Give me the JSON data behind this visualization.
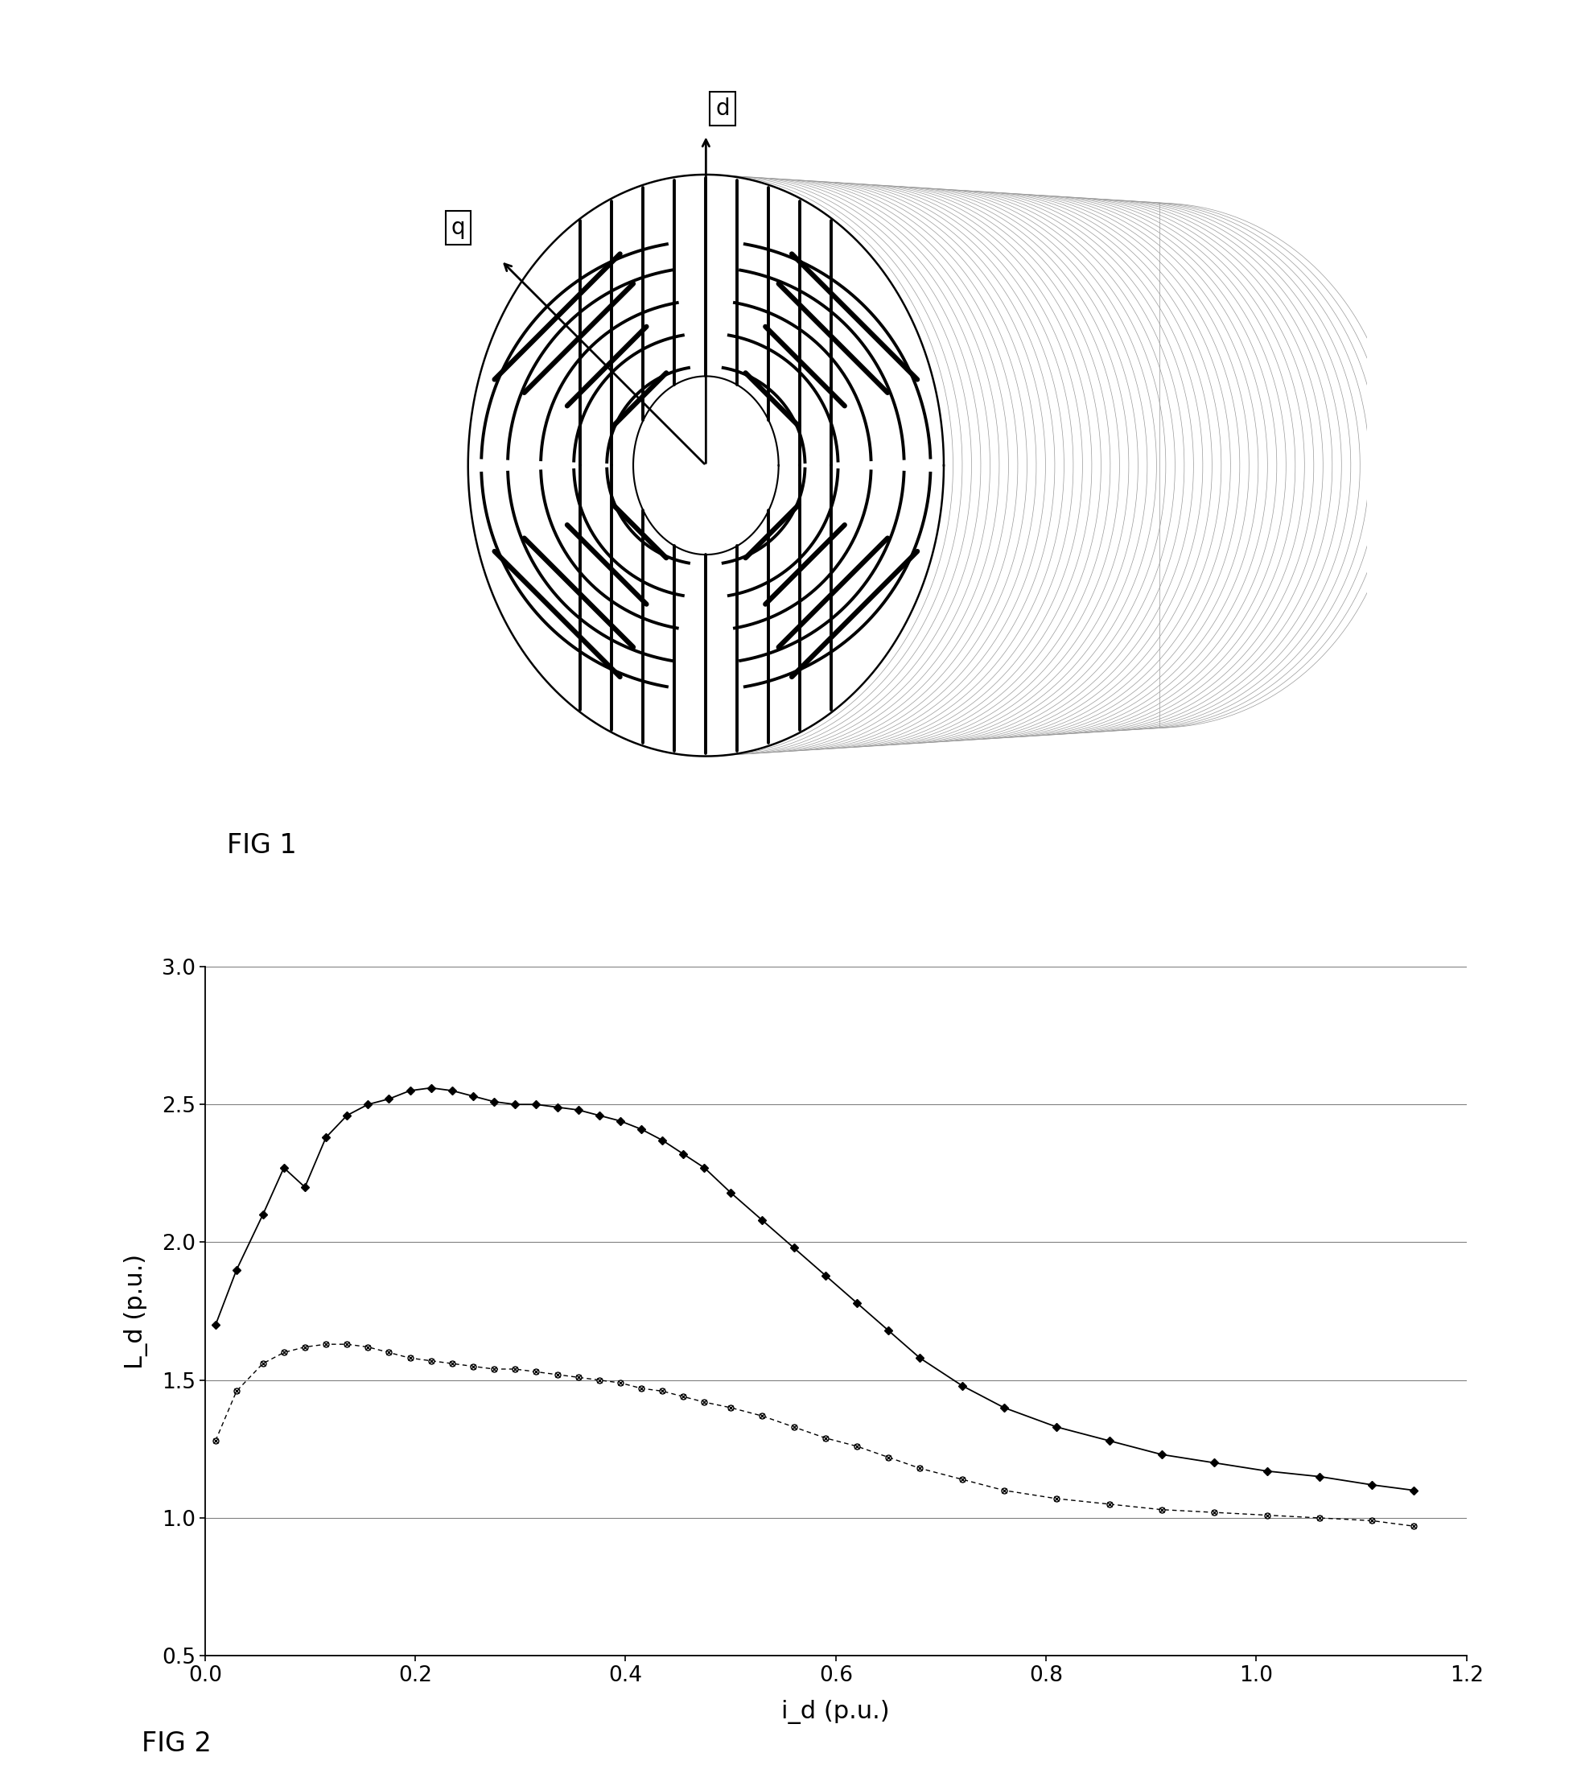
{
  "fig1_label": "FIG 1",
  "fig2_label": "FIG 2",
  "xlabel": "i_d (p.u.)",
  "ylabel": "L_d (p.u.)",
  "xlim": [
    0,
    1.2
  ],
  "ylim": [
    0.5,
    3.0
  ],
  "xticks": [
    0,
    0.2,
    0.4,
    0.6,
    0.8,
    1.0,
    1.2
  ],
  "yticks": [
    0.5,
    1.0,
    1.5,
    2.0,
    2.5,
    3.0
  ],
  "bg_color": "#ffffff",
  "series1_x": [
    0.01,
    0.03,
    0.055,
    0.075,
    0.095,
    0.115,
    0.135,
    0.155,
    0.175,
    0.195,
    0.215,
    0.235,
    0.255,
    0.275,
    0.295,
    0.315,
    0.335,
    0.355,
    0.375,
    0.395,
    0.415,
    0.435,
    0.455,
    0.475,
    0.5,
    0.53,
    0.56,
    0.59,
    0.62,
    0.65,
    0.68,
    0.72,
    0.76,
    0.81,
    0.86,
    0.91,
    0.96,
    1.01,
    1.06,
    1.11,
    1.15
  ],
  "series1_y": [
    1.7,
    1.9,
    2.1,
    2.27,
    2.2,
    2.38,
    2.46,
    2.5,
    2.52,
    2.55,
    2.56,
    2.55,
    2.53,
    2.51,
    2.5,
    2.5,
    2.49,
    2.48,
    2.46,
    2.44,
    2.41,
    2.37,
    2.32,
    2.27,
    2.18,
    2.08,
    1.98,
    1.88,
    1.78,
    1.68,
    1.58,
    1.48,
    1.4,
    1.33,
    1.28,
    1.23,
    1.2,
    1.17,
    1.15,
    1.12,
    1.1
  ],
  "series2_x": [
    0.01,
    0.03,
    0.055,
    0.075,
    0.095,
    0.115,
    0.135,
    0.155,
    0.175,
    0.195,
    0.215,
    0.235,
    0.255,
    0.275,
    0.295,
    0.315,
    0.335,
    0.355,
    0.375,
    0.395,
    0.415,
    0.435,
    0.455,
    0.475,
    0.5,
    0.53,
    0.56,
    0.59,
    0.62,
    0.65,
    0.68,
    0.72,
    0.76,
    0.81,
    0.86,
    0.91,
    0.96,
    1.01,
    1.06,
    1.11,
    1.15
  ],
  "series2_y": [
    1.28,
    1.46,
    1.56,
    1.6,
    1.62,
    1.63,
    1.63,
    1.62,
    1.6,
    1.58,
    1.57,
    1.56,
    1.55,
    1.54,
    1.54,
    1.53,
    1.52,
    1.51,
    1.5,
    1.49,
    1.47,
    1.46,
    1.44,
    1.42,
    1.4,
    1.37,
    1.33,
    1.29,
    1.26,
    1.22,
    1.18,
    1.14,
    1.1,
    1.07,
    1.05,
    1.03,
    1.02,
    1.01,
    1.0,
    0.99,
    0.97
  ]
}
